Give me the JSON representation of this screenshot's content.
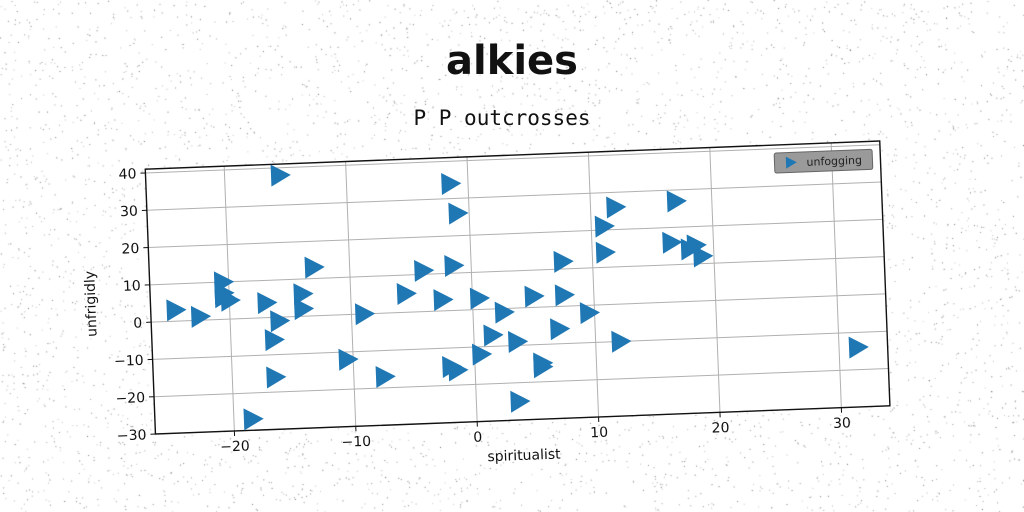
{
  "figure": {
    "suptitle": "alkies"
  },
  "chart_data": {
    "type": "scatter",
    "title": "P P outcrosses",
    "xlabel": "spiritualist",
    "ylabel": "unfrigidly",
    "xlim": [
      -26.5,
      34
    ],
    "ylim": [
      -30,
      41
    ],
    "xticks": [
      -20,
      -10,
      0,
      10,
      20,
      30
    ],
    "yticks": [
      -30,
      -20,
      -10,
      0,
      10,
      20,
      30,
      40
    ],
    "grid": true,
    "legend_position": "top-right",
    "marker": "triangle-right",
    "series": [
      {
        "name": "unfogging",
        "color": "#1f77b4",
        "points": [
          [
            -15.5,
            38
          ],
          [
            -24.5,
            3
          ],
          [
            -22.5,
            1
          ],
          [
            -20.5,
            10
          ],
          [
            -20.5,
            6
          ],
          [
            -20.5,
            7
          ],
          [
            -20,
            5
          ],
          [
            -17,
            4
          ],
          [
            -16,
            -1
          ],
          [
            -16.5,
            -6
          ],
          [
            -16.5,
            -16
          ],
          [
            -18.5,
            -27
          ],
          [
            -14,
            6
          ],
          [
            -14,
            2
          ],
          [
            -13,
            13
          ],
          [
            -9,
            0
          ],
          [
            -10.5,
            -12
          ],
          [
            -7.5,
            -17
          ],
          [
            -5.5,
            5
          ],
          [
            -4,
            11
          ],
          [
            -2.5,
            3
          ],
          [
            -1.5,
            12
          ],
          [
            -2,
            -15
          ],
          [
            -1.5,
            -16
          ],
          [
            -1.5,
            34
          ],
          [
            -1,
            26
          ],
          [
            0.5,
            3
          ],
          [
            0.5,
            -12
          ],
          [
            1.5,
            -7
          ],
          [
            2.5,
            -1
          ],
          [
            3.5,
            -9
          ],
          [
            3.5,
            -25
          ],
          [
            5,
            3
          ],
          [
            5.5,
            -15
          ],
          [
            5.5,
            -16
          ],
          [
            7,
            -6
          ],
          [
            7.5,
            3
          ],
          [
            7.5,
            12
          ],
          [
            9.5,
            -2
          ],
          [
            11,
            14
          ],
          [
            11,
            21
          ],
          [
            12,
            26
          ],
          [
            12,
            -10
          ],
          [
            17,
            27
          ],
          [
            16.5,
            16
          ],
          [
            18,
            14
          ],
          [
            18.5,
            15
          ],
          [
            19,
            12
          ],
          [
            31.5,
            -14
          ]
        ]
      }
    ]
  }
}
